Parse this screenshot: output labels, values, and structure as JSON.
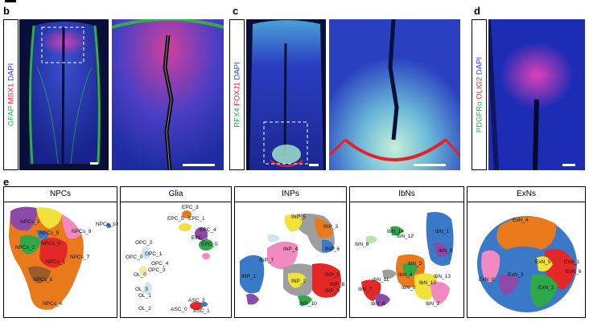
{
  "panels": {
    "b": {
      "letter": "b",
      "stain_1": "GFAP",
      "stain_2": "MSX1",
      "stain_3": "DAPI"
    },
    "c": {
      "letter": "c",
      "stain_1": "RFX4",
      "stain_2": "FOXJ1",
      "stain_3": "DAPI"
    },
    "d": {
      "letter": "d",
      "stain_1": "PDGFRα",
      "stain_2": "OLIG2",
      "stain_3": "DAPI"
    },
    "e": {
      "letter": "e"
    }
  },
  "colors": {
    "green": "#19b34a",
    "red": "#e8202a",
    "blue": "#2a3bd6",
    "dapi_bg": "#1a2f9a"
  },
  "umaps": [
    {
      "title": "NPCs",
      "labels": [
        "NPCs_3",
        "NPCs_9",
        "NPCs_10",
        "NPCs_5",
        "NPCs_6",
        "NPCs_2",
        "NPCs_7",
        "NPCs_1",
        "NPCs_8",
        "NPCs_4"
      ]
    },
    {
      "title": "Glia",
      "labels": [
        "EPC_3",
        "EPC_5",
        "EPC_1",
        "EPC_4",
        "EPC_2",
        "EPC_0",
        "OPC_2",
        "OPC_0",
        "OPC_1",
        "OPC_4",
        "OPC_3",
        "OL_0",
        "OL_3",
        "OL_1",
        "OL_2",
        "ASC_2",
        "ASC_0",
        "ASC_1"
      ]
    },
    {
      "title": "INPs",
      "labels": [
        "INP_5",
        "INP_3",
        "INP_4",
        "INP_1",
        "INP_6",
        "INP_7",
        "INP_0",
        "INP_2",
        "INP_8",
        "INP_9",
        "INP_10"
      ]
    },
    {
      "title": "IbNs",
      "labels": [
        "IbN_14",
        "IbN_1",
        "IbN_6",
        "IbN_12",
        "IbN_9",
        "IbN_3",
        "IbN_4",
        "IbN_13",
        "IbN_11",
        "IbN_0",
        "IbN_7",
        "IbN_10",
        "IbN_8",
        "IbN_2"
      ]
    },
    {
      "title": "ExNs",
      "labels": [
        "ExN_4",
        "ExN_1",
        "ExN_5",
        "ExN_6",
        "ExN_3",
        "ExN_0",
        "ExN_2"
      ]
    }
  ]
}
